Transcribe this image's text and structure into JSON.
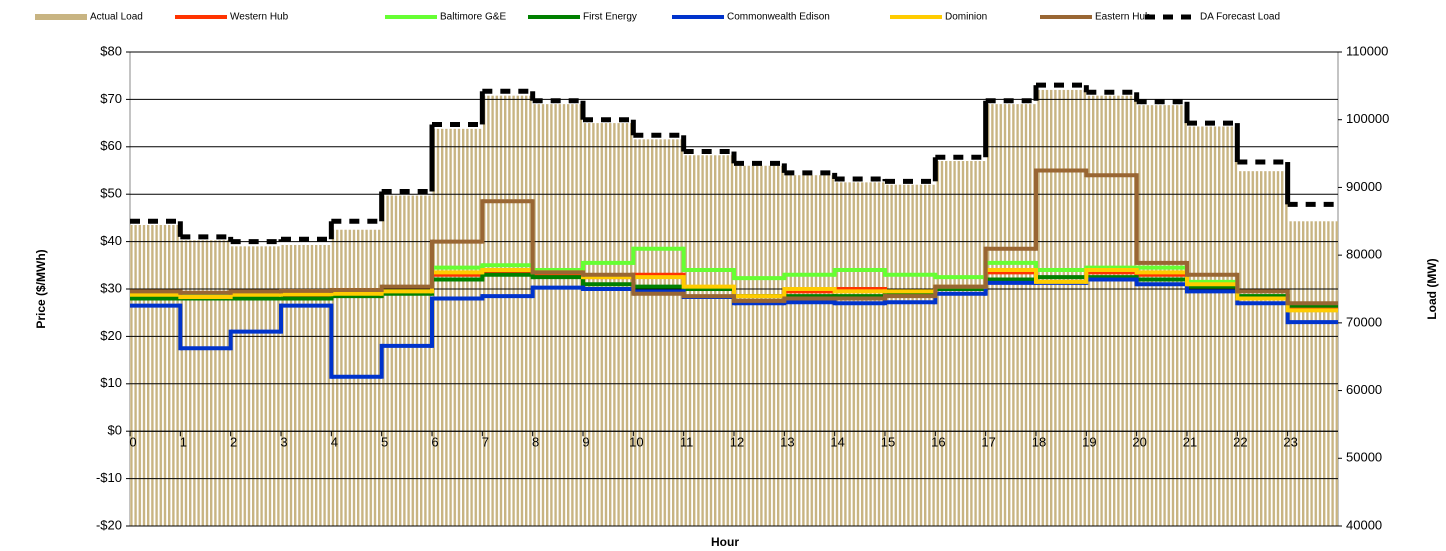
{
  "chart_data": {
    "type": "combo",
    "xlabel": "Hour",
    "ylabel": "Price ($/MWh)",
    "y2label": "Load (MW)",
    "x": [
      0,
      1,
      2,
      3,
      4,
      5,
      6,
      7,
      8,
      9,
      10,
      11,
      12,
      13,
      14,
      15,
      16,
      17,
      18,
      19,
      20,
      21,
      22,
      23
    ],
    "xlim": [
      0,
      24
    ],
    "xticks": [
      0,
      1,
      2,
      3,
      4,
      5,
      6,
      7,
      8,
      9,
      10,
      11,
      12,
      13,
      14,
      15,
      16,
      17,
      18,
      19,
      20,
      21,
      22,
      23
    ],
    "ylim": [
      -20,
      80
    ],
    "yticks": [
      {
        "value": -20,
        "label": "-$20"
      },
      {
        "value": -10,
        "label": "-$10"
      },
      {
        "value": 0,
        "label": "$0"
      },
      {
        "value": 10,
        "label": "$10"
      },
      {
        "value": 20,
        "label": "$20"
      },
      {
        "value": 30,
        "label": "$30"
      },
      {
        "value": 40,
        "label": "$40"
      },
      {
        "value": 50,
        "label": "$50"
      },
      {
        "value": 60,
        "label": "$60"
      },
      {
        "value": 70,
        "label": "$70"
      },
      {
        "value": 80,
        "label": "$80"
      }
    ],
    "y2lim": [
      40000,
      110000
    ],
    "y2ticks": [
      40000,
      50000,
      60000,
      70000,
      80000,
      90000,
      100000,
      110000
    ],
    "grid": true,
    "legend": "top",
    "series": [
      {
        "name": "Actual Load",
        "type": "bar",
        "axis": "y2",
        "color": "#c8b482",
        "values": [
          84450,
          82200,
          81300,
          81500,
          83750,
          88800,
          98650,
          103550,
          102300,
          99500,
          97100,
          94750,
          93200,
          91800,
          90750,
          90400,
          93900,
          102300,
          104400,
          103550,
          102150,
          99000,
          92400,
          85000
        ]
      },
      {
        "name": "Western Hub",
        "type": "line",
        "color": "#ff3300",
        "values": [
          28.5,
          28,
          28.5,
          28.7,
          29,
          29.2,
          33,
          33.5,
          33,
          32.5,
          33,
          30,
          28.5,
          29.5,
          30,
          29.2,
          30.3,
          33.5,
          31.5,
          33.5,
          33,
          30.5,
          28,
          26
        ]
      },
      {
        "name": "Baltimore G&E",
        "type": "line",
        "color": "#66ff33",
        "values": [
          28.5,
          28.5,
          28.8,
          29,
          29,
          29.5,
          34.5,
          35,
          34,
          35.5,
          38.5,
          34,
          32.3,
          33,
          34,
          33,
          32.5,
          35.5,
          34,
          34.5,
          34.5,
          31.5,
          28.5,
          26.5
        ]
      },
      {
        "name": "First Energy",
        "type": "line",
        "color": "#008000",
        "values": [
          28,
          28,
          28,
          28,
          28.5,
          29,
          32,
          33,
          32.5,
          31,
          30.5,
          30,
          28.5,
          28.5,
          28.5,
          29,
          30,
          32,
          32.5,
          32.5,
          32,
          30.5,
          28.5,
          26.5
        ]
      },
      {
        "name": "Commonwealth Edison",
        "type": "line",
        "color": "#0033cc",
        "values": [
          26.5,
          17.5,
          21,
          26.5,
          11.5,
          18,
          28,
          28.5,
          30.3,
          30,
          29.5,
          28.3,
          27,
          27.2,
          27,
          27.2,
          29,
          31.3,
          31.3,
          32,
          31,
          29.5,
          27,
          23
        ]
      },
      {
        "name": "Dominion",
        "type": "line",
        "color": "#ffcc00",
        "values": [
          28.8,
          28.3,
          28.8,
          28.9,
          29,
          29.5,
          33.5,
          34,
          33.5,
          32.5,
          32.5,
          30.5,
          28.5,
          30,
          29.5,
          29.5,
          30.5,
          34,
          31.5,
          34,
          33.5,
          31,
          28,
          25.5
        ]
      },
      {
        "name": "Eastern Hub",
        "type": "line",
        "color": "#996633",
        "values": [
          29.5,
          29.2,
          29.5,
          29.6,
          29.8,
          30.5,
          40,
          48.5,
          33.5,
          33,
          29,
          28.5,
          27.5,
          28,
          28,
          28.5,
          30.5,
          38.5,
          55,
          54,
          35.5,
          33,
          29.5,
          27
        ]
      },
      {
        "name": "DA Forecast Load",
        "type": "line",
        "style": "dashed",
        "axis": "y2",
        "color": "#000000",
        "values": [
          85000,
          82700,
          82000,
          82350,
          85000,
          89400,
          99300,
          104200,
          102800,
          100000,
          97700,
          95300,
          93550,
          92150,
          91250,
          90900,
          94450,
          102800,
          105100,
          104050,
          102650,
          99500,
          93750,
          87500
        ]
      }
    ]
  }
}
